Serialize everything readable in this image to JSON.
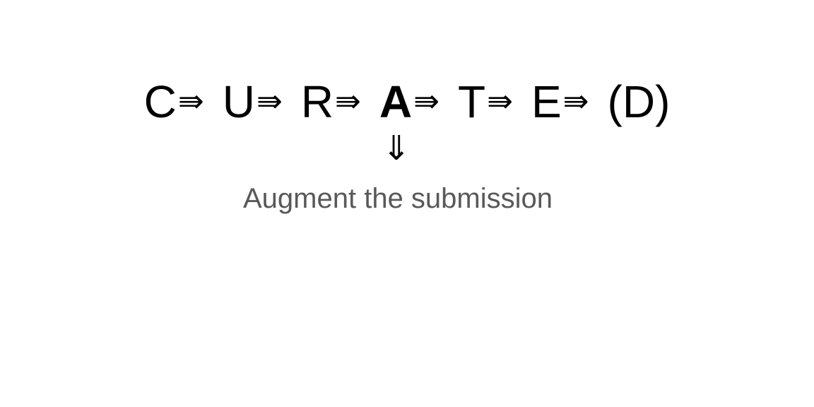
{
  "sequence": {
    "steps": [
      "C",
      "U",
      "R",
      "A",
      "T",
      "E",
      "(D)"
    ],
    "active_index": 3,
    "arrow_glyph": "⇛"
  },
  "down_arrow_glyph": "⇓",
  "caption": "Augment the submission",
  "colors": {
    "text": "#000000",
    "caption": "#595959",
    "background": "#ffffff"
  }
}
